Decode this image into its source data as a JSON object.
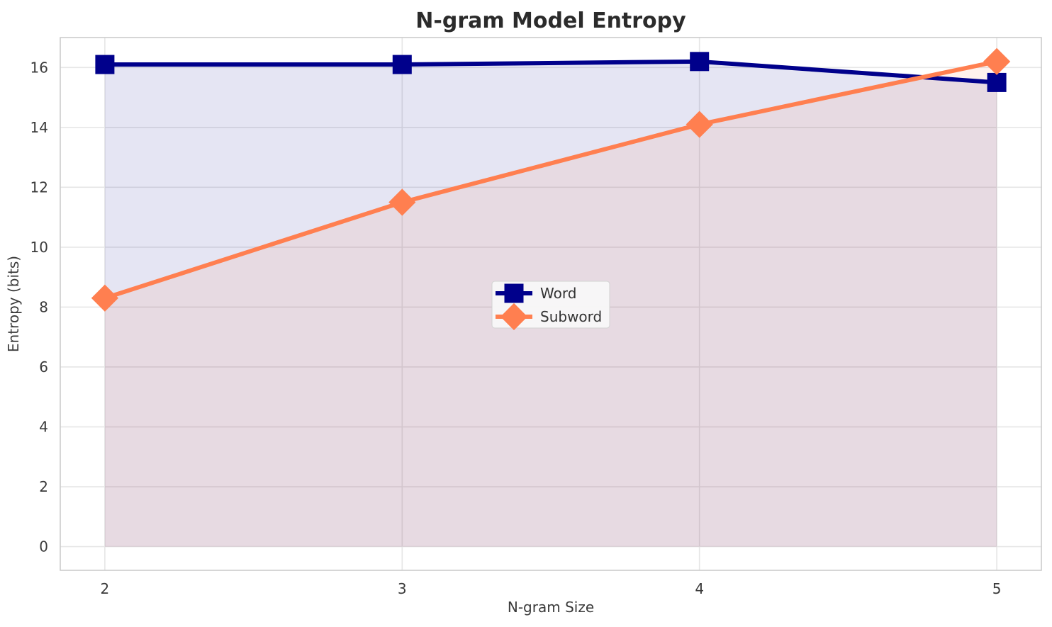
{
  "chart_data": {
    "type": "line",
    "title": "N-gram Model Entropy",
    "xlabel": "N-gram Size",
    "ylabel": "Entropy (bits)",
    "x": [
      2,
      3,
      4,
      5
    ],
    "x_tick_labels": [
      "2",
      "3",
      "4",
      "5"
    ],
    "y_ticks": [
      0,
      2,
      4,
      6,
      8,
      10,
      12,
      14,
      16
    ],
    "y_tick_labels": [
      "0",
      "2",
      "4",
      "6",
      "8",
      "10",
      "12",
      "14",
      "16"
    ],
    "xlim": [
      1.85,
      5.15
    ],
    "ylim": [
      -0.79,
      17.0
    ],
    "grid": true,
    "area_fill": true,
    "fill_alpha": 0.1,
    "fill_baseline": 0,
    "legend_position": "center",
    "series": [
      {
        "name": "Word",
        "marker": "square",
        "color": "#00008b",
        "values": [
          16.1,
          16.1,
          16.2,
          15.5
        ]
      },
      {
        "name": "Subword",
        "marker": "diamond",
        "color": "#ff7f50",
        "values": [
          8.3,
          11.5,
          14.1,
          16.2
        ]
      }
    ]
  }
}
